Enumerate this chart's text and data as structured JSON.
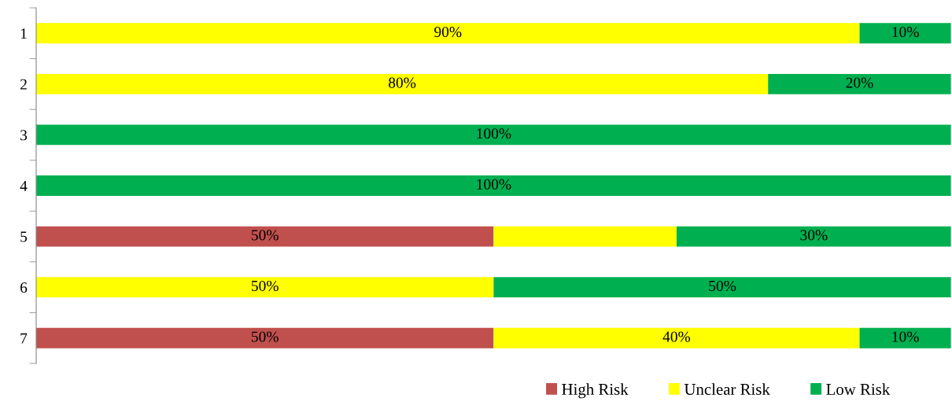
{
  "chart_data": {
    "type": "bar",
    "orientation": "horizontal",
    "stacked": true,
    "categories": [
      "1",
      "2",
      "3",
      "4",
      "5",
      "6",
      "7"
    ],
    "xlim": [
      0,
      100
    ],
    "tick_labels": "y",
    "legend": "bottom",
    "grid": false,
    "series": [
      {
        "name": "High Risk",
        "color": "#c0504d",
        "values": [
          null,
          null,
          null,
          null,
          50,
          null,
          50
        ],
        "value_labels": [
          null,
          null,
          null,
          null,
          "50%",
          null,
          "50%"
        ]
      },
      {
        "name": "Unclear Risk",
        "color": "#ffff00",
        "values": [
          90,
          80,
          null,
          null,
          20,
          50,
          40
        ],
        "value_labels": [
          "90%",
          "80%",
          null,
          null,
          null,
          "50%",
          "40%"
        ]
      },
      {
        "name": "Low Risk",
        "color": "#00b050",
        "values": [
          10,
          20,
          100,
          100,
          30,
          50,
          10
        ],
        "value_labels": [
          "10%",
          "20%",
          "100%",
          "100%",
          "30%",
          "50%",
          "10%"
        ]
      }
    ]
  }
}
